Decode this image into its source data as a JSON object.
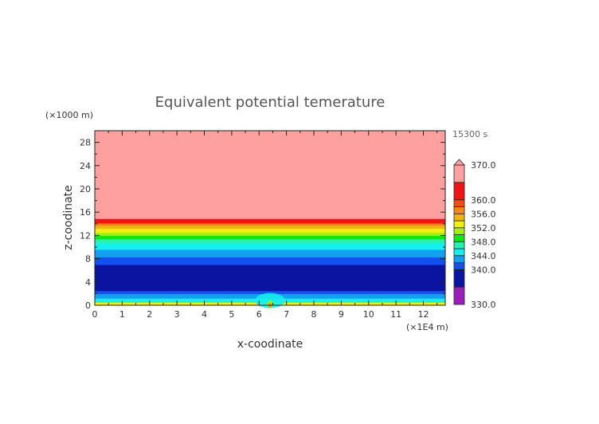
{
  "chart_data": {
    "type": "heatmap",
    "title": "Equivalent potential temerature",
    "xlabel": "x-coodinate",
    "ylabel": "z-coodinate",
    "x_unit": "(×1E4 m)",
    "y_unit": "(×1000 m)",
    "time_label": "15300 s",
    "xlim": [
      0,
      12.8
    ],
    "ylim": [
      0,
      30
    ],
    "xticks": [
      "0",
      "1",
      "2",
      "3",
      "4",
      "5",
      "6",
      "7",
      "8",
      "9",
      "10",
      "11",
      "12"
    ],
    "yticks": [
      "0",
      "4",
      "8",
      "12",
      "16",
      "20",
      "24",
      "28"
    ],
    "colorbar": {
      "levels": [
        330,
        335,
        340,
        342,
        344,
        346,
        348,
        350,
        352,
        354,
        356,
        358,
        360,
        365,
        370
      ],
      "colors": [
        "#9a1fb8",
        "#0a14a0",
        "#1450f0",
        "#14a0f0",
        "#14f0f0",
        "#28f0b4",
        "#14e614",
        "#a0f014",
        "#f0f014",
        "#f0b414",
        "#f08c14",
        "#f05014",
        "#f01414",
        "#ffa0a0"
      ],
      "labels": [
        "370.0",
        "360.0",
        "356.0",
        "352.0",
        "348.0",
        "344.0",
        "340.0",
        "330.0"
      ],
      "extend": "max"
    },
    "bands": [
      {
        "z": [
          0,
          0.5
        ],
        "value": 353
      },
      {
        "z": [
          0.5,
          0.8
        ],
        "value": 347
      },
      {
        "z": [
          0.8,
          1.2
        ],
        "value": 345
      },
      {
        "z": [
          1.2,
          2.0
        ],
        "value": 343
      },
      {
        "z": [
          2.0,
          2.5
        ],
        "value": 341
      },
      {
        "z": [
          2.5,
          7.0
        ],
        "value": 338
      },
      {
        "z": [
          7.0,
          8.3
        ],
        "value": 341
      },
      {
        "z": [
          8.3,
          9.6
        ],
        "value": 343
      },
      {
        "z": [
          9.6,
          10.7
        ],
        "value": 345
      },
      {
        "z": [
          10.7,
          11.4
        ],
        "value": 347
      },
      {
        "z": [
          11.4,
          12.0
        ],
        "value": 349
      },
      {
        "z": [
          12.0,
          12.5
        ],
        "value": 351
      },
      {
        "z": [
          12.5,
          13.2
        ],
        "value": 353
      },
      {
        "z": [
          13.2,
          13.7
        ],
        "value": 355
      },
      {
        "z": [
          13.7,
          14.0
        ],
        "value": 357
      },
      {
        "z": [
          14.0,
          14.2
        ],
        "value": 359
      },
      {
        "z": [
          14.2,
          14.9
        ],
        "value": 362
      },
      {
        "z": [
          14.9,
          30
        ],
        "value": 367
      }
    ],
    "anomaly": {
      "x_center": 6.4,
      "half_width": 0.55,
      "top_z": 2.1,
      "value": 345,
      "core_value": 351
    }
  }
}
